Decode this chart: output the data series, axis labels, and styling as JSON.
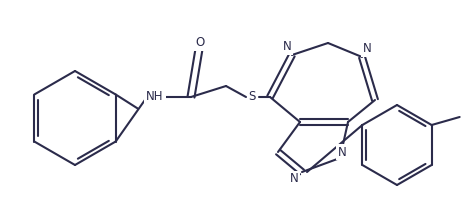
{
  "bg_color": "#ffffff",
  "line_color": "#2b2b4b",
  "line_width": 1.5,
  "font_size": 8.5,
  "figsize": [
    4.61,
    2.17
  ],
  "dpi": 100,
  "xlim": [
    0,
    461
  ],
  "ylim": [
    0,
    217
  ]
}
